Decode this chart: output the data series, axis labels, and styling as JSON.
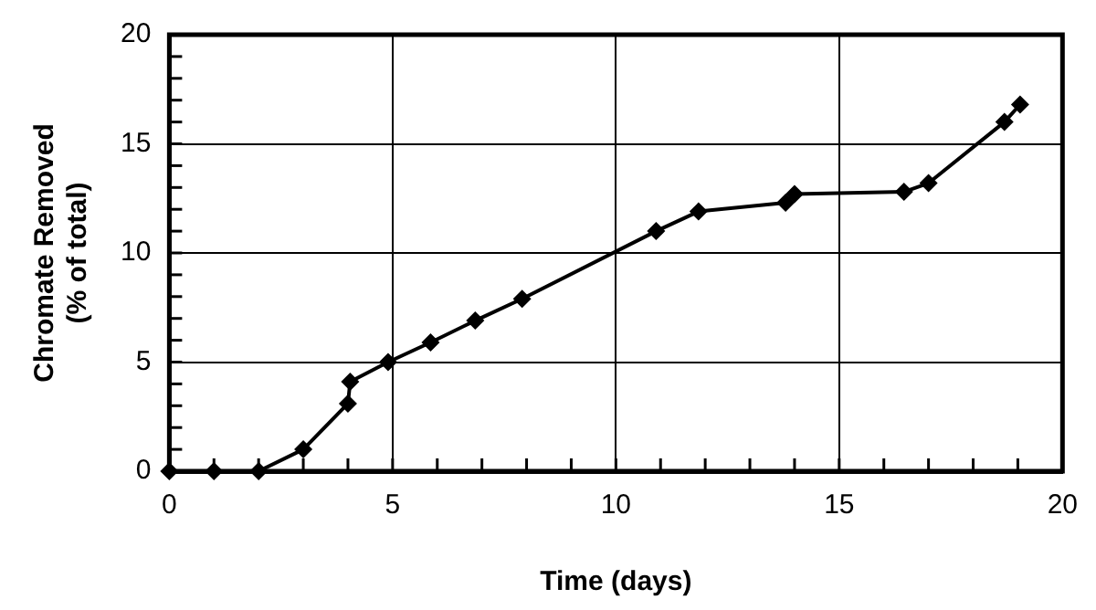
{
  "chart_data": {
    "type": "line",
    "xlabel": "Time (days)",
    "ylabel": "Chromate Removed\n(% of total)",
    "x": [
      0,
      1,
      2,
      3,
      4,
      4.05,
      4.9,
      5.85,
      6.85,
      7.9,
      10.9,
      11.85,
      13.8,
      14,
      16.45,
      17,
      18.7,
      19.05
    ],
    "series": [
      {
        "color": "#000000",
        "values": [
          0,
          0,
          0,
          1,
          3.1,
          4.1,
          5,
          5.9,
          6.9,
          7.9,
          11,
          11.9,
          12.3,
          12.7,
          12.8,
          13.2,
          16,
          16.8
        ]
      }
    ],
    "xlim": [
      0,
      20
    ],
    "ylim": [
      0,
      20
    ],
    "xticks": [
      0,
      5,
      10,
      15,
      20
    ],
    "yticks": [
      0,
      5,
      10,
      15,
      20
    ],
    "grid": true,
    "legend": false,
    "marker": "diamond",
    "line_style": "solid"
  }
}
